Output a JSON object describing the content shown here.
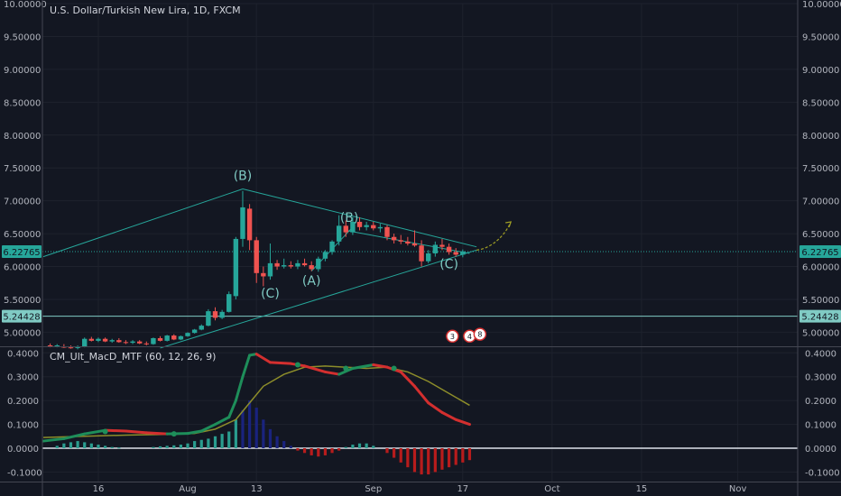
{
  "header": {
    "symbol_line": "U.S. Dollar/Turkish New Lira, 1D, FXCM"
  },
  "indicator": {
    "title": "CM_Ult_MacD_MTF (60, 12, 26, 9)"
  },
  "price_badges": [
    {
      "label": "6.22765",
      "value": 6.22765,
      "color": "#26a69a",
      "dotted": true
    },
    {
      "label": "5.24428",
      "value": 5.24428,
      "color": "#80cbc4",
      "dotted": false
    }
  ],
  "colors": {
    "up": "#26a69a",
    "down": "#ef5350",
    "background": "#131722",
    "macd_up": "#1e8e5a",
    "macd_down": "#d32f2f",
    "signal": "#8d8d2a",
    "hist_up": "#2a9d8f",
    "hist_dark_up": "#1a237e",
    "hist_down": "#b71c1c",
    "drawing": "#26a69a",
    "wave_label": "#80cbc4",
    "arrow": "#9e9d24"
  },
  "chart_data": [
    {
      "type": "candlestick",
      "title": "U.S. Dollar/Turkish New Lira, 1D, FXCM",
      "x_ticks": [
        "16",
        "Aug",
        "13",
        "Sep",
        "17",
        "Oct",
        "15",
        "Nov"
      ],
      "x_tick_index": [
        8,
        21,
        31,
        48,
        61,
        74,
        87,
        101
      ],
      "y_ticks": [
        "10.00000",
        "9.50000",
        "9.00000",
        "8.50000",
        "8.00000",
        "7.50000",
        "7.00000",
        "6.50000",
        "6.00000",
        "5.50000",
        "5.00000"
      ],
      "ylim": [
        4.8,
        10.0
      ],
      "candles": [
        {
          "i": 1,
          "o": 4.8,
          "h": 4.83,
          "l": 4.77,
          "c": 4.79
        },
        {
          "i": 2,
          "o": 4.79,
          "h": 4.82,
          "l": 4.77,
          "c": 4.8
        },
        {
          "i": 3,
          "o": 4.78,
          "h": 4.82,
          "l": 4.76,
          "c": 4.77
        },
        {
          "i": 4,
          "o": 4.77,
          "h": 4.8,
          "l": 4.75,
          "c": 4.76
        },
        {
          "i": 5,
          "o": 4.76,
          "h": 4.8,
          "l": 4.74,
          "c": 4.78
        },
        {
          "i": 6,
          "o": 4.78,
          "h": 4.92,
          "l": 4.77,
          "c": 4.9
        },
        {
          "i": 7,
          "o": 4.9,
          "h": 4.93,
          "l": 4.86,
          "c": 4.87
        },
        {
          "i": 8,
          "o": 4.87,
          "h": 4.92,
          "l": 4.85,
          "c": 4.9
        },
        {
          "i": 9,
          "o": 4.9,
          "h": 4.92,
          "l": 4.85,
          "c": 4.86
        },
        {
          "i": 10,
          "o": 4.86,
          "h": 4.9,
          "l": 4.84,
          "c": 4.88
        },
        {
          "i": 11,
          "o": 4.88,
          "h": 4.91,
          "l": 4.84,
          "c": 4.85
        },
        {
          "i": 12,
          "o": 4.85,
          "h": 4.88,
          "l": 4.82,
          "c": 4.84
        },
        {
          "i": 13,
          "o": 4.84,
          "h": 4.88,
          "l": 4.82,
          "c": 4.86
        },
        {
          "i": 14,
          "o": 4.86,
          "h": 4.88,
          "l": 4.82,
          "c": 4.83
        },
        {
          "i": 15,
          "o": 4.83,
          "h": 4.86,
          "l": 4.8,
          "c": 4.82
        },
        {
          "i": 16,
          "o": 4.82,
          "h": 4.92,
          "l": 4.81,
          "c": 4.91
        },
        {
          "i": 17,
          "o": 4.91,
          "h": 4.94,
          "l": 4.86,
          "c": 4.87
        },
        {
          "i": 18,
          "o": 4.87,
          "h": 4.96,
          "l": 4.86,
          "c": 4.95
        },
        {
          "i": 19,
          "o": 4.95,
          "h": 4.97,
          "l": 4.88,
          "c": 4.89
        },
        {
          "i": 20,
          "o": 4.89,
          "h": 4.95,
          "l": 4.88,
          "c": 4.94
        },
        {
          "i": 21,
          "o": 4.94,
          "h": 5.0,
          "l": 4.93,
          "c": 4.99
        },
        {
          "i": 22,
          "o": 4.99,
          "h": 5.05,
          "l": 4.98,
          "c": 5.04
        },
        {
          "i": 23,
          "o": 5.04,
          "h": 5.12,
          "l": 5.03,
          "c": 5.1
        },
        {
          "i": 24,
          "o": 5.1,
          "h": 5.35,
          "l": 5.09,
          "c": 5.32
        },
        {
          "i": 25,
          "o": 5.32,
          "h": 5.38,
          "l": 5.18,
          "c": 5.22
        },
        {
          "i": 26,
          "o": 5.22,
          "h": 5.34,
          "l": 5.2,
          "c": 5.31
        },
        {
          "i": 27,
          "o": 5.31,
          "h": 5.62,
          "l": 5.3,
          "c": 5.58
        },
        {
          "i": 28,
          "o": 5.55,
          "h": 6.45,
          "l": 5.5,
          "c": 6.42
        },
        {
          "i": 29,
          "o": 6.42,
          "h": 7.15,
          "l": 6.3,
          "c": 6.9
        },
        {
          "i": 30,
          "o": 6.88,
          "h": 6.95,
          "l": 6.25,
          "c": 6.4
        },
        {
          "i": 31,
          "o": 6.4,
          "h": 6.45,
          "l": 5.75,
          "c": 5.9
        },
        {
          "i": 32,
          "o": 5.9,
          "h": 6.0,
          "l": 5.7,
          "c": 5.85
        },
        {
          "i": 33,
          "o": 5.85,
          "h": 6.35,
          "l": 5.8,
          "c": 6.05
        },
        {
          "i": 34,
          "o": 6.05,
          "h": 6.1,
          "l": 5.95,
          "c": 6.0
        },
        {
          "i": 35,
          "o": 6.0,
          "h": 6.12,
          "l": 5.97,
          "c": 6.02
        },
        {
          "i": 36,
          "o": 6.02,
          "h": 6.08,
          "l": 5.97,
          "c": 6.0
        },
        {
          "i": 37,
          "o": 6.0,
          "h": 6.1,
          "l": 5.96,
          "c": 6.05
        },
        {
          "i": 38,
          "o": 6.05,
          "h": 6.12,
          "l": 6.0,
          "c": 6.02
        },
        {
          "i": 39,
          "o": 6.02,
          "h": 6.08,
          "l": 5.93,
          "c": 5.96
        },
        {
          "i": 40,
          "o": 5.96,
          "h": 6.15,
          "l": 5.92,
          "c": 6.12
        },
        {
          "i": 41,
          "o": 6.12,
          "h": 6.25,
          "l": 6.08,
          "c": 6.22
        },
        {
          "i": 42,
          "o": 6.22,
          "h": 6.4,
          "l": 6.18,
          "c": 6.38
        },
        {
          "i": 43,
          "o": 6.38,
          "h": 6.78,
          "l": 6.32,
          "c": 6.62
        },
        {
          "i": 44,
          "o": 6.62,
          "h": 6.7,
          "l": 6.45,
          "c": 6.52
        },
        {
          "i": 45,
          "o": 6.52,
          "h": 6.75,
          "l": 6.48,
          "c": 6.68
        },
        {
          "i": 46,
          "o": 6.68,
          "h": 6.75,
          "l": 6.55,
          "c": 6.6
        },
        {
          "i": 47,
          "o": 6.6,
          "h": 6.68,
          "l": 6.55,
          "c": 6.63
        },
        {
          "i": 48,
          "o": 6.63,
          "h": 6.68,
          "l": 6.55,
          "c": 6.58
        },
        {
          "i": 49,
          "o": 6.58,
          "h": 6.65,
          "l": 6.52,
          "c": 6.6
        },
        {
          "i": 50,
          "o": 6.6,
          "h": 6.63,
          "l": 6.4,
          "c": 6.45
        },
        {
          "i": 51,
          "o": 6.45,
          "h": 6.5,
          "l": 6.35,
          "c": 6.4
        },
        {
          "i": 52,
          "o": 6.4,
          "h": 6.48,
          "l": 6.34,
          "c": 6.38
        },
        {
          "i": 53,
          "o": 6.38,
          "h": 6.45,
          "l": 6.32,
          "c": 6.35
        },
        {
          "i": 54,
          "o": 6.35,
          "h": 6.55,
          "l": 6.3,
          "c": 6.32
        },
        {
          "i": 55,
          "o": 6.32,
          "h": 6.4,
          "l": 6.0,
          "c": 6.08
        },
        {
          "i": 56,
          "o": 6.08,
          "h": 6.25,
          "l": 6.05,
          "c": 6.2
        },
        {
          "i": 57,
          "o": 6.2,
          "h": 6.38,
          "l": 6.15,
          "c": 6.33
        },
        {
          "i": 58,
          "o": 6.33,
          "h": 6.42,
          "l": 6.25,
          "c": 6.3
        },
        {
          "i": 59,
          "o": 6.3,
          "h": 6.35,
          "l": 6.18,
          "c": 6.22
        },
        {
          "i": 60,
          "o": 6.22,
          "h": 6.28,
          "l": 6.15,
          "c": 6.18
        },
        {
          "i": 61,
          "o": 6.18,
          "h": 6.26,
          "l": 6.14,
          "c": 6.23
        }
      ],
      "trendlines": [
        {
          "from": [
            0,
            6.15
          ],
          "to": [
            29,
            7.18
          ]
        },
        {
          "from": [
            29,
            7.18
          ],
          "to": [
            63,
            6.3
          ]
        },
        {
          "from": [
            17,
            4.76
          ],
          "to": [
            63,
            6.25
          ]
        },
        {
          "from": [
            39,
            5.93
          ],
          "to": [
            45,
            6.6
          ]
        },
        {
          "from": [
            44,
            6.55
          ],
          "to": [
            62,
            6.2
          ]
        }
      ],
      "wave_labels": [
        {
          "text": "(B)",
          "x": 29,
          "y": 7.32
        },
        {
          "text": "(C)",
          "x": 33,
          "y": 5.53
        },
        {
          "text": "(A)",
          "x": 39,
          "y": 5.72
        },
        {
          "text": "(B)",
          "x": 44.5,
          "y": 6.68
        },
        {
          "text": "(C)",
          "x": 59,
          "y": 5.97
        }
      ],
      "projection_arrow": {
        "from": [
          63,
          6.25
        ],
        "to": [
          68,
          6.68
        ]
      },
      "event_flags": [
        {
          "x": 59.5,
          "y": 4.94,
          "label": "3"
        },
        {
          "x": 62,
          "y": 4.94,
          "label": "4"
        },
        {
          "x": 63.5,
          "y": 4.97,
          "label": "8"
        }
      ]
    },
    {
      "type": "line",
      "title": "CM_Ult_MacD_MTF (60, 12, 26, 9)",
      "y_ticks": [
        "0.4000",
        "0.3000",
        "0.2000",
        "0.1000",
        "0.0000",
        "-0.1000"
      ],
      "ylim": [
        -0.14,
        0.42
      ],
      "series": [
        {
          "values": [
            [
              0,
              0.03
            ],
            [
              3,
              0.04
            ],
            [
              6,
              0.06
            ],
            [
              9,
              0.075
            ],
            [
              12,
              0.072
            ],
            [
              15,
              0.065
            ],
            [
              18,
              0.06
            ],
            [
              21,
              0.062
            ],
            [
              23,
              0.072
            ],
            [
              25,
              0.1
            ],
            [
              27,
              0.13
            ],
            [
              28,
              0.2
            ],
            [
              29,
              0.3
            ],
            [
              30,
              0.39
            ],
            [
              31,
              0.395
            ],
            [
              33,
              0.36
            ],
            [
              36,
              0.355
            ],
            [
              38,
              0.345
            ],
            [
              41,
              0.32
            ],
            [
              43,
              0.31
            ],
            [
              45,
              0.335
            ],
            [
              48,
              0.35
            ],
            [
              50,
              0.34
            ],
            [
              52,
              0.32
            ],
            [
              54,
              0.26
            ],
            [
              56,
              0.19
            ],
            [
              58,
              0.15
            ],
            [
              60,
              0.12
            ],
            [
              62,
              0.1
            ]
          ]
        },
        {
          "values": [
            [
              0,
              0.045
            ],
            [
              6,
              0.05
            ],
            [
              12,
              0.055
            ],
            [
              18,
              0.058
            ],
            [
              22,
              0.062
            ],
            [
              25,
              0.08
            ],
            [
              28,
              0.12
            ],
            [
              30,
              0.19
            ],
            [
              32,
              0.26
            ],
            [
              35,
              0.31
            ],
            [
              38,
              0.34
            ],
            [
              41,
              0.345
            ],
            [
              44,
              0.34
            ],
            [
              47,
              0.335
            ],
            [
              50,
              0.34
            ],
            [
              53,
              0.32
            ],
            [
              56,
              0.28
            ],
            [
              59,
              0.23
            ],
            [
              62,
              0.18
            ]
          ]
        }
      ],
      "histogram": [
        [
          2,
          0.01
        ],
        [
          3,
          0.02
        ],
        [
          4,
          0.025
        ],
        [
          5,
          0.03
        ],
        [
          6,
          0.025
        ],
        [
          7,
          0.02
        ],
        [
          8,
          0.015
        ],
        [
          9,
          0.01
        ],
        [
          10,
          0.005
        ],
        [
          11,
          0.003
        ],
        [
          16,
          0.005
        ],
        [
          17,
          0.008
        ],
        [
          18,
          0.01
        ],
        [
          19,
          0.012
        ],
        [
          20,
          0.015
        ],
        [
          21,
          0.02
        ],
        [
          22,
          0.03
        ],
        [
          23,
          0.035
        ],
        [
          24,
          0.04
        ],
        [
          25,
          0.05
        ],
        [
          26,
          0.06
        ],
        [
          27,
          0.07
        ],
        [
          28,
          0.12
        ],
        [
          29,
          0.16
        ],
        [
          30,
          0.2
        ],
        [
          31,
          0.17
        ],
        [
          32,
          0.12
        ],
        [
          33,
          0.08
        ],
        [
          34,
          0.05
        ],
        [
          35,
          0.03
        ],
        [
          36,
          0.01
        ],
        [
          37,
          -0.01
        ],
        [
          38,
          -0.02
        ],
        [
          39,
          -0.03
        ],
        [
          40,
          -0.035
        ],
        [
          41,
          -0.03
        ],
        [
          42,
          -0.02
        ],
        [
          43,
          -0.01
        ],
        [
          44,
          0.005
        ],
        [
          45,
          0.015
        ],
        [
          46,
          0.02
        ],
        [
          47,
          0.02
        ],
        [
          48,
          0.01
        ],
        [
          50,
          -0.02
        ],
        [
          51,
          -0.04
        ],
        [
          52,
          -0.06
        ],
        [
          53,
          -0.08
        ],
        [
          54,
          -0.1
        ],
        [
          55,
          -0.11
        ],
        [
          56,
          -0.11
        ],
        [
          57,
          -0.1
        ],
        [
          58,
          -0.09
        ],
        [
          59,
          -0.08
        ],
        [
          60,
          -0.07
        ],
        [
          61,
          -0.06
        ],
        [
          62,
          -0.05
        ]
      ],
      "crossovers": [
        [
          9,
          0.07
        ],
        [
          19,
          0.06
        ],
        [
          37,
          0.35
        ],
        [
          44,
          0.335
        ],
        [
          51,
          0.335
        ]
      ]
    }
  ]
}
